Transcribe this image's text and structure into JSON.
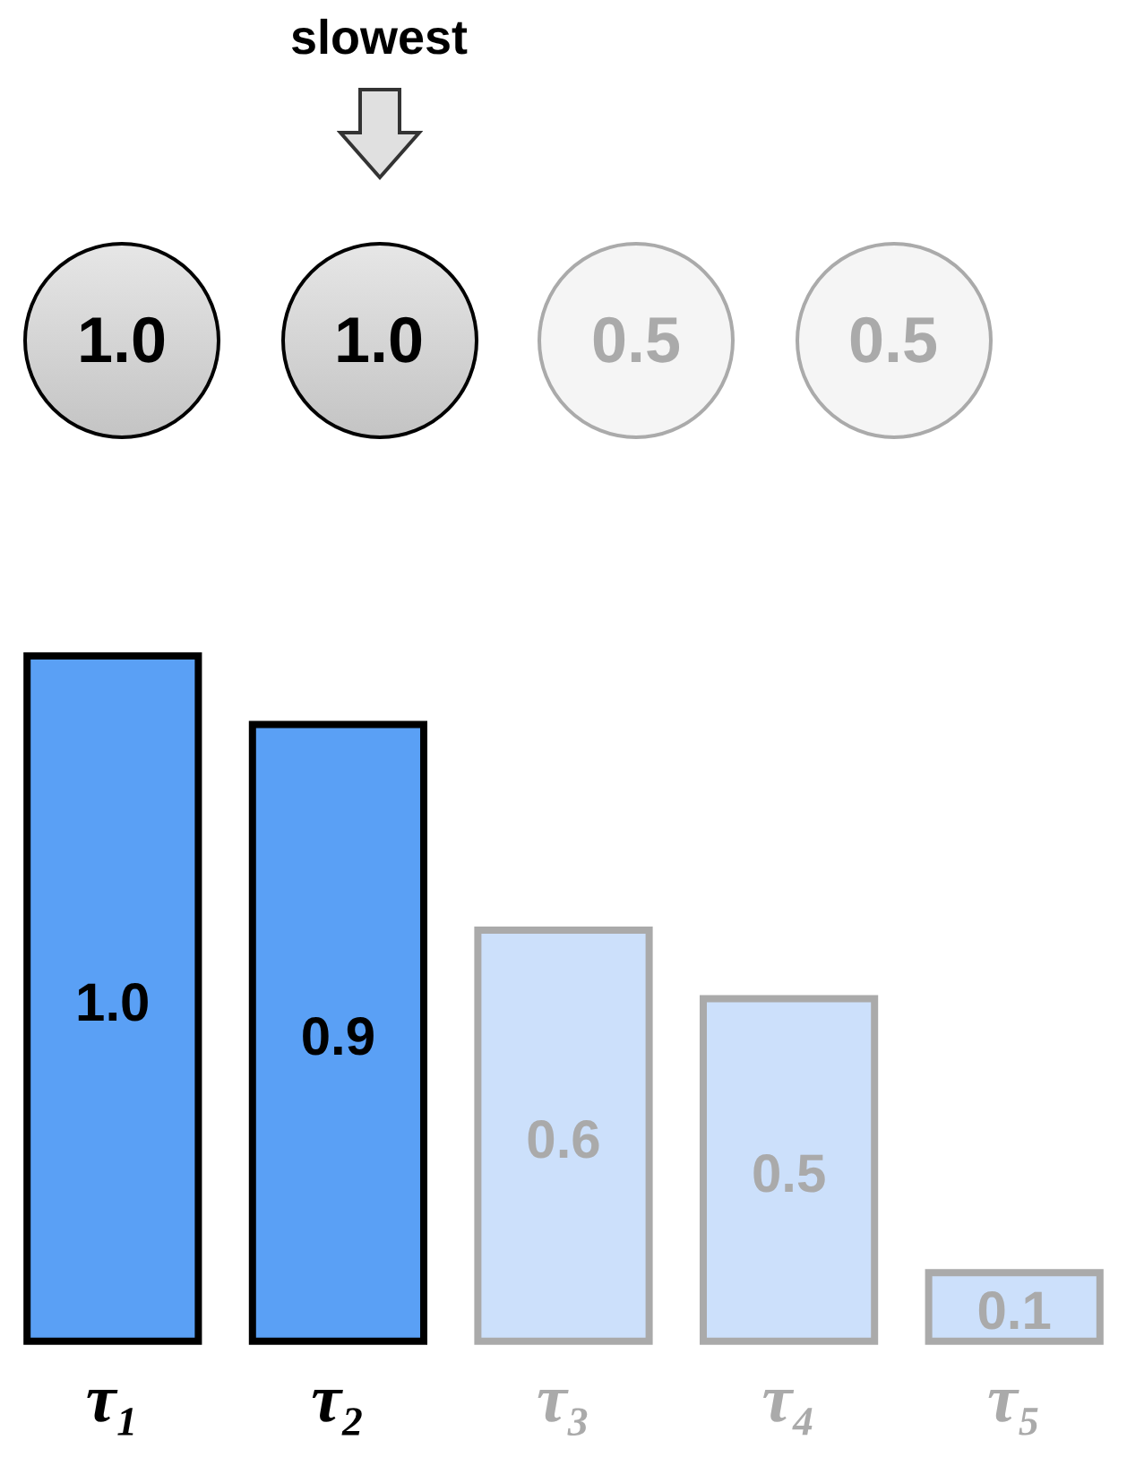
{
  "chart_data": [
    {
      "type": "other",
      "categories": [
        null,
        null,
        null,
        null
      ],
      "values": [
        1.0,
        1.0,
        0.5,
        0.5
      ],
      "colors": [
        "#c4c4c4",
        "#c4c4c4",
        "#f5f5f5",
        "#f5f5f5"
      ],
      "value_labels": [
        "1.0",
        "1.0",
        "0.5",
        "0.5"
      ],
      "annotations": [
        "slowest"
      ]
    },
    {
      "type": "bar",
      "categories": [
        "τ₁",
        "τ₂",
        "τ₃",
        "τ₄",
        "τ₅"
      ],
      "values": [
        1.0,
        0.9,
        0.6,
        0.5,
        0.1
      ],
      "colors": [
        "#5aa0f5",
        "#5aa0f5",
        "#cce0fb",
        "#cce0fb",
        "#cce0fb"
      ],
      "value_labels": [
        "1.0",
        "0.9",
        "0.6",
        "0.5",
        "0.1"
      ],
      "legend": false,
      "grid": false
    }
  ]
}
